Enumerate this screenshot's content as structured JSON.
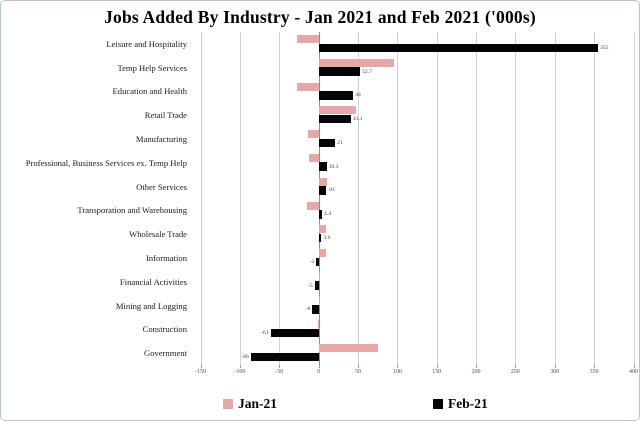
{
  "chart_data": {
    "type": "bar",
    "orientation": "horizontal",
    "title": "Jobs Added By Industry - Jan 2021 and Feb 2021 ('000s)",
    "categories": [
      "Leisure and Hospitality",
      "Temp Help Services",
      "Education and Health",
      "Retail Trade",
      "Manufacturing",
      "Professional, Business Services ex. Temp Help",
      "Other Services",
      "Transporation and Warehousing",
      "Wholesale Trade",
      "Information",
      "Financial Activities",
      "Mining and Logging",
      "Construction",
      "Government"
    ],
    "series": [
      {
        "name": "Jan-21",
        "color": "#e8a6a6",
        "values": [
          -27,
          96,
          -28,
          48,
          -14,
          -12,
          11,
          -15,
          9,
          9,
          1,
          1,
          -1,
          76
        ],
        "data_labels": []
      },
      {
        "name": "Feb-21",
        "color": "#050505",
        "values": [
          355,
          52.7,
          44,
          41.1,
          21,
          10.3,
          10,
          4.4,
          3.6,
          -3,
          -5,
          -8,
          -61,
          -86
        ],
        "data_labels": [
          "355",
          "52.7",
          "44",
          "41.1",
          "21",
          "10.3",
          "10",
          "4.4",
          "3.6",
          "-3",
          "-5",
          "-8",
          "-61",
          "-86"
        ]
      }
    ],
    "x_axis": {
      "min": -150,
      "max": 400,
      "tick_step": 50,
      "tick_labels": [
        "-150",
        "-100",
        "-50",
        "0",
        "50",
        "100",
        "150",
        "200",
        "250",
        "300",
        "350",
        "400"
      ]
    },
    "grid": "vertical-only",
    "legend_position": "bottom",
    "colors": {
      "background": "#ffffff",
      "gridline": "#d2d2d2",
      "zero_line": "#8f8f8f",
      "frame_border": "#b7c3cd"
    }
  }
}
